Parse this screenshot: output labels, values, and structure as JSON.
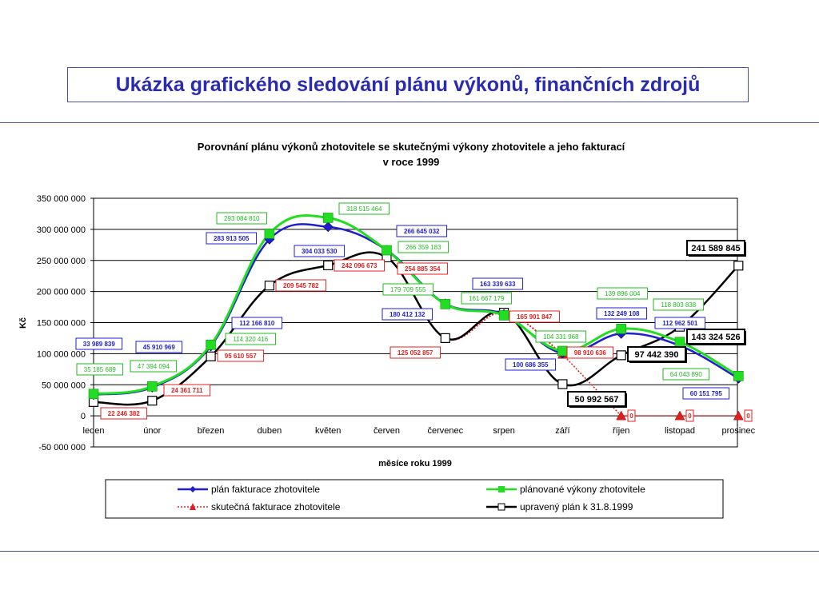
{
  "page": {
    "title": "Ukázka grafického sledování plánu výkonů, finančních zdrojů"
  },
  "chart_data": {
    "type": "line",
    "title_line1": "Porovnání plánu výkonů zhotovitele se skutečnými výkony zhotovitele a jeho  fakturací",
    "title_line2": "v  roce 1999",
    "xlabel": "měsíce roku 1999",
    "ylabel": "Kč",
    "ylim": [
      -50000000,
      350000000
    ],
    "yticks": [
      -50000000,
      0,
      50000000,
      100000000,
      150000000,
      200000000,
      250000000,
      300000000,
      350000000
    ],
    "ytick_labels": [
      "-50 000 000",
      "0",
      "50 000 000",
      "100 000 000",
      "150 000 000",
      "200 000 000",
      "250 000 000",
      "300 000 000",
      "350 000 000"
    ],
    "categories": [
      "leden",
      "únor",
      "březen",
      "duben",
      "květen",
      "červen",
      "červenec",
      "srpen",
      "září",
      "říjen",
      "listopad",
      "prosinec"
    ],
    "grid": true,
    "legend_position": "bottom",
    "series": [
      {
        "name": "plán fakturace zhotovitele",
        "color": "#1f1fcc",
        "marker": "diamond",
        "values": [
          33989839,
          45910969,
          112166810,
          283913505,
          304033530,
          266645032,
          180412132,
          163339633,
          100686355,
          132249108,
          112962501,
          60151795
        ],
        "labels": [
          "33 989 839",
          "45 910 969",
          "112 166 810",
          "283 913 505",
          "304 033 530",
          "266 645 032",
          "180 412 132",
          "163 339 633",
          "100 686 355",
          "132 249 108",
          "112 962 501",
          "60 151 795"
        ]
      },
      {
        "name": "plánované výkony zhotovitele",
        "color": "#22dd22",
        "marker": "square",
        "values": [
          35185689,
          47394094,
          114320416,
          293084810,
          318515464,
          266359183,
          179709555,
          161667179,
          104331968,
          139896004,
          118803838,
          64043890
        ],
        "labels": [
          "35 185 689",
          "47 394 094",
          "114 320 416",
          "293 084 810",
          "318 515 464",
          "266 359 183",
          "179 709 555",
          "161 667 179",
          "104 331 968",
          "139 896 004",
          "118 803 838",
          "64 043 890"
        ]
      },
      {
        "name": "skutečná fakturace zhotovitele",
        "color": "#e02020",
        "marker": "triangle",
        "values": [
          22246382,
          24361711,
          95610557,
          209545782,
          242096673,
          254885354,
          125052857,
          165901847,
          98910636,
          0,
          0,
          0
        ],
        "labels": [
          "22 246 382",
          "24 361 711",
          "95 610 557",
          "209 545 782",
          "242 096 673",
          "254 885 354",
          "125 052 857",
          "165 901 847",
          "98 910 636",
          "0",
          "0",
          "0"
        ]
      },
      {
        "name": "upravený plán k 31.8.1999",
        "color": "#000000",
        "marker": "open-square",
        "values": [
          22246382,
          24361711,
          95610557,
          209545782,
          242096673,
          254885354,
          125052857,
          165901847,
          50992567,
          97442390,
          143324526,
          241589845
        ],
        "labels": [
          "",
          "",
          "",
          "",
          "",
          "",
          "",
          "",
          "50 992 567",
          "97 442 390",
          "143 324 526",
          "241 589 845"
        ]
      }
    ]
  }
}
